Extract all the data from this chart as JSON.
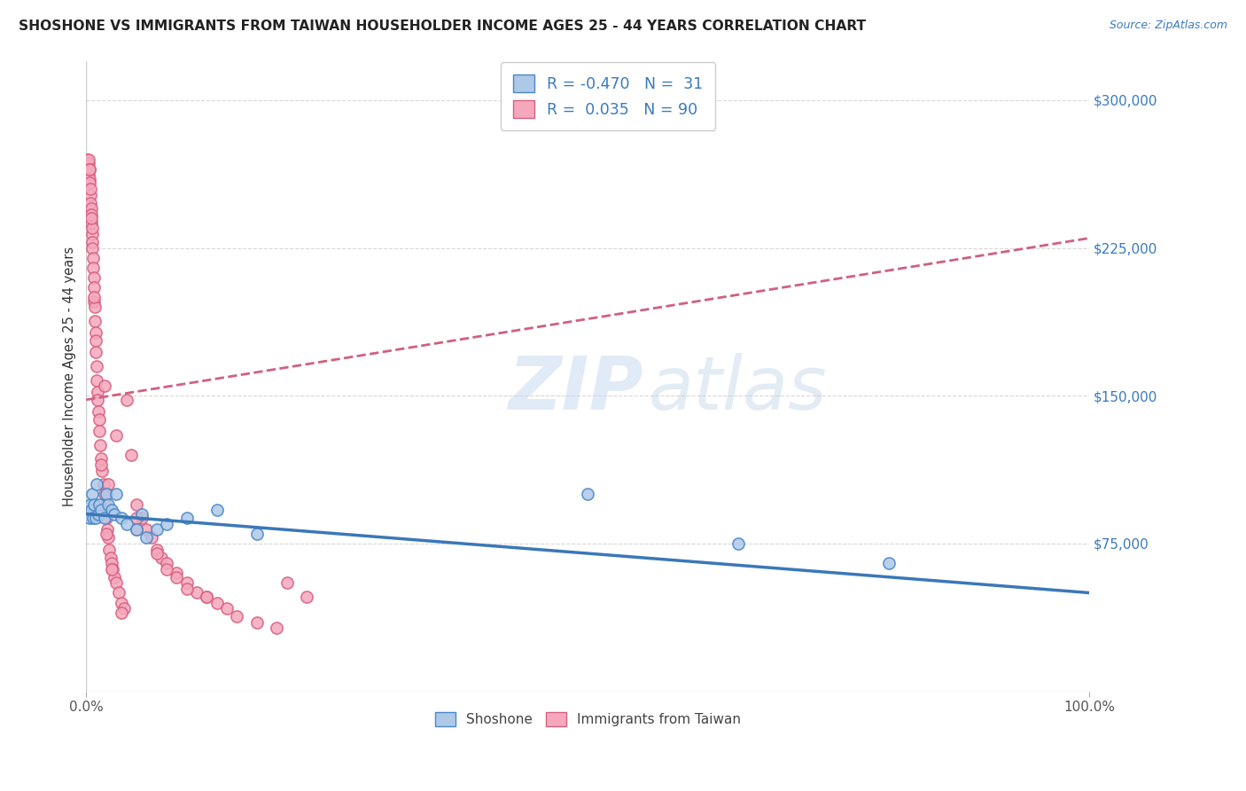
{
  "title": "SHOSHONE VS IMMIGRANTS FROM TAIWAN HOUSEHOLDER INCOME AGES 25 - 44 YEARS CORRELATION CHART",
  "source": "Source: ZipAtlas.com",
  "ylabel": "Householder Income Ages 25 - 44 years",
  "shoshone_R": -0.47,
  "shoshone_N": 31,
  "taiwan_R": 0.035,
  "taiwan_N": 90,
  "shoshone_color": "#aec8e8",
  "shoshone_edge": "#4a88c8",
  "shoshone_line": "#3a78b8",
  "taiwan_color": "#f5a8bc",
  "taiwan_edge": "#d86080",
  "taiwan_line": "#d06080",
  "label_color": "#3a7abf",
  "title_color": "#222222",
  "grid_color": "#d8d8d8",
  "ytick_vals": [
    75000,
    150000,
    225000,
    300000
  ],
  "shoshone_x": [
    0.2,
    0.3,
    0.4,
    0.5,
    0.6,
    0.7,
    0.8,
    0.9,
    1.0,
    1.2,
    1.3,
    1.5,
    1.8,
    2.0,
    2.2,
    2.5,
    2.8,
    3.0,
    3.5,
    4.0,
    5.0,
    5.5,
    6.0,
    7.0,
    8.0,
    10.0,
    13.0,
    17.0,
    50.0,
    65.0,
    80.0
  ],
  "shoshone_y": [
    90000,
    88000,
    95000,
    92000,
    100000,
    88000,
    95000,
    88000,
    105000,
    90000,
    95000,
    92000,
    88000,
    100000,
    95000,
    92000,
    90000,
    100000,
    88000,
    85000,
    82000,
    90000,
    78000,
    82000,
    85000,
    88000,
    92000,
    80000,
    100000,
    75000,
    65000
  ],
  "taiwan_x": [
    0.1,
    0.15,
    0.2,
    0.22,
    0.25,
    0.28,
    0.3,
    0.32,
    0.35,
    0.4,
    0.42,
    0.45,
    0.48,
    0.5,
    0.52,
    0.55,
    0.58,
    0.6,
    0.62,
    0.65,
    0.7,
    0.72,
    0.75,
    0.8,
    0.82,
    0.85,
    0.9,
    0.92,
    0.95,
    1.0,
    1.05,
    1.1,
    1.15,
    1.2,
    1.25,
    1.3,
    1.4,
    1.5,
    1.6,
    1.7,
    1.8,
    1.9,
    2.0,
    2.1,
    2.2,
    2.3,
    2.4,
    2.5,
    2.6,
    2.8,
    3.0,
    3.2,
    3.5,
    3.8,
    4.0,
    4.5,
    5.0,
    5.5,
    6.0,
    6.5,
    7.0,
    7.5,
    8.0,
    9.0,
    10.0,
    11.0,
    12.0,
    13.0,
    14.0,
    15.0,
    17.0,
    19.0,
    20.0,
    22.0,
    5.0,
    1.5,
    2.0,
    3.5,
    8.0,
    10.0,
    12.0,
    1.8,
    2.5,
    3.0,
    5.0,
    7.0,
    9.0,
    0.5,
    0.8,
    2.2
  ],
  "taiwan_y": [
    270000,
    265000,
    262000,
    268000,
    270000,
    265000,
    260000,
    265000,
    258000,
    252000,
    255000,
    248000,
    245000,
    238000,
    242000,
    232000,
    228000,
    235000,
    225000,
    220000,
    215000,
    210000,
    205000,
    198000,
    195000,
    188000,
    182000,
    178000,
    172000,
    165000,
    158000,
    152000,
    148000,
    142000,
    138000,
    132000,
    125000,
    118000,
    112000,
    105000,
    100000,
    95000,
    88000,
    82000,
    78000,
    72000,
    68000,
    65000,
    62000,
    58000,
    55000,
    50000,
    45000,
    42000,
    148000,
    120000,
    95000,
    88000,
    82000,
    78000,
    72000,
    68000,
    65000,
    60000,
    55000,
    50000,
    48000,
    45000,
    42000,
    38000,
    35000,
    32000,
    55000,
    48000,
    88000,
    115000,
    80000,
    40000,
    62000,
    52000,
    48000,
    155000,
    62000,
    130000,
    82000,
    70000,
    58000,
    240000,
    200000,
    105000
  ]
}
